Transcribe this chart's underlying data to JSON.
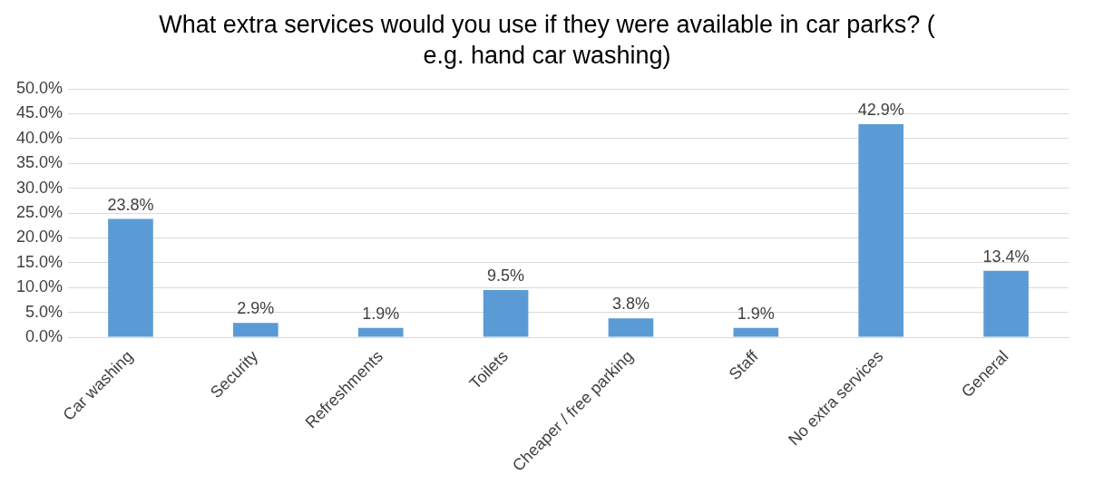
{
  "chart_data": {
    "type": "bar",
    "title": "What extra services would you use if they were available in car parks? ( e.g. hand car washing)",
    "categories": [
      "Car washing",
      "Security",
      "Refreshments",
      "Toilets",
      "Cheaper / free parking",
      "Staff",
      "No extra services",
      "General"
    ],
    "values": [
      23.8,
      2.9,
      1.9,
      9.5,
      3.8,
      1.9,
      42.9,
      13.4
    ],
    "value_labels": [
      "23.8%",
      "2.9%",
      "1.9%",
      "9.5%",
      "3.8%",
      "1.9%",
      "42.9%",
      "13.4%"
    ],
    "color": "#5b9bd5",
    "ylim": [
      0,
      50
    ],
    "yticks": [
      {
        "value": 0,
        "label": "0.0%"
      },
      {
        "value": 5,
        "label": "5.0%"
      },
      {
        "value": 10,
        "label": "10.0%"
      },
      {
        "value": 15,
        "label": "15.0%"
      },
      {
        "value": 20,
        "label": "20.0%"
      },
      {
        "value": 25,
        "label": "25.0%"
      },
      {
        "value": 30,
        "label": "30.0%"
      },
      {
        "value": 35,
        "label": "35.0%"
      },
      {
        "value": 40,
        "label": "40.0%"
      },
      {
        "value": 45,
        "label": "45.0%"
      },
      {
        "value": 50,
        "label": "50.0%"
      }
    ],
    "grid": "y"
  }
}
